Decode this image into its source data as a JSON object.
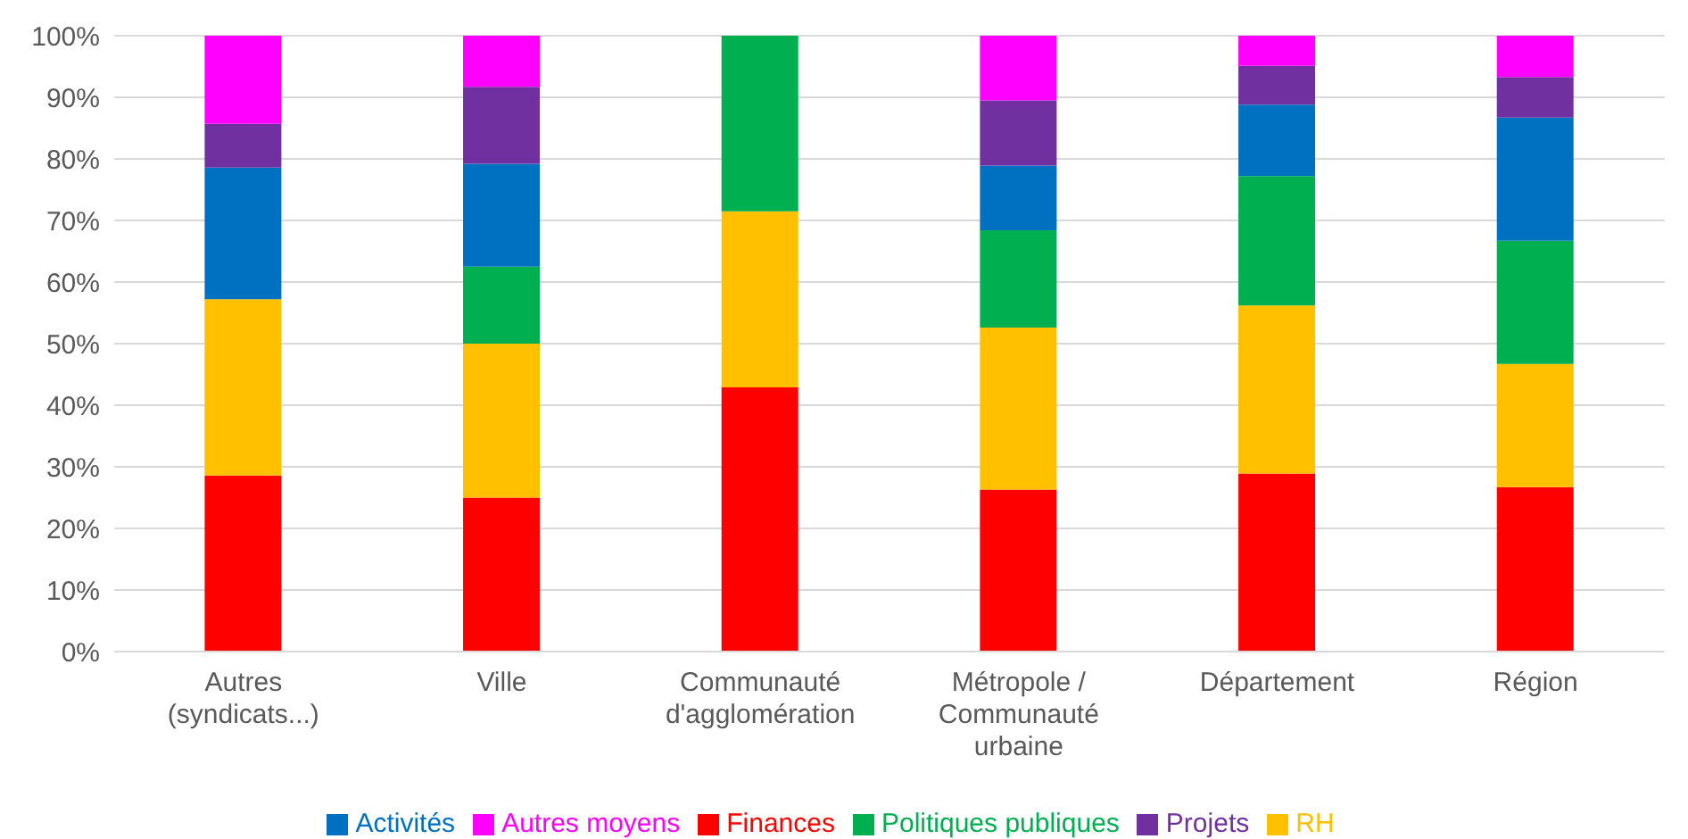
{
  "chart_data": {
    "type": "bar",
    "stacked": true,
    "categories": [
      "Autres (syndicats...)",
      "Ville",
      "Communauté d'agglomération",
      "Métropole / Communauté urbaine",
      "Département",
      "Région"
    ],
    "series": [
      {
        "name": "Finances",
        "color": "#ff0000",
        "values": [
          28.6,
          25,
          42.9,
          26.3,
          28.9,
          26.7
        ]
      },
      {
        "name": "RH",
        "color": "#ffc000",
        "values": [
          28.6,
          25,
          28.6,
          26.3,
          27.3,
          20
        ]
      },
      {
        "name": "Politiques publiques",
        "color": "#00b050",
        "values": [
          0,
          12.5,
          28.5,
          15.8,
          21,
          20
        ]
      },
      {
        "name": "Activités",
        "color": "#0070c0",
        "values": [
          21.4,
          16.7,
          0,
          10.5,
          11.6,
          20
        ]
      },
      {
        "name": "Projets",
        "color": "#7030a0",
        "values": [
          7.1,
          12.5,
          0,
          10.6,
          6.3,
          6.6
        ]
      },
      {
        "name": "Autres moyens",
        "color": "#ff00ff",
        "values": [
          14.3,
          8.3,
          0,
          10.5,
          4.9,
          6.7
        ]
      }
    ],
    "ylim": [
      0,
      100
    ],
    "yticks": [
      {
        "value": 0,
        "label": "0%"
      },
      {
        "value": 10,
        "label": "10%"
      },
      {
        "value": 20,
        "label": "20%"
      },
      {
        "value": 30,
        "label": "30%"
      },
      {
        "value": 40,
        "label": "40%"
      },
      {
        "value": 50,
        "label": "50%"
      },
      {
        "value": 60,
        "label": "60%"
      },
      {
        "value": 70,
        "label": "70%"
      },
      {
        "value": 80,
        "label": "80%"
      },
      {
        "value": 90,
        "label": "90%"
      },
      {
        "value": 100,
        "label": "100%"
      }
    ],
    "grid": "y",
    "legend": "bottom"
  }
}
